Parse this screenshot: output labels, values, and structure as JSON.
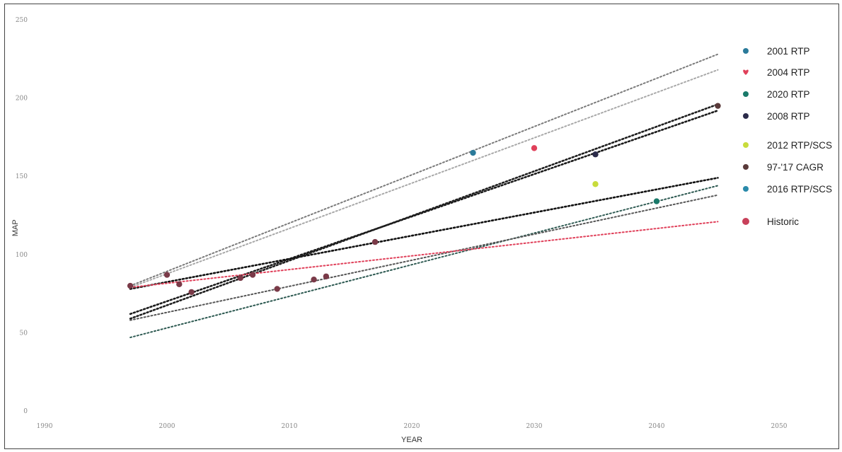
{
  "chart_data": {
    "type": "scatter",
    "xlabel": "YEAR",
    "ylabel": "MAP",
    "xlim": [
      1990,
      2050
    ],
    "ylim": [
      0,
      250
    ],
    "x_ticks": [
      1990,
      2000,
      2010,
      2020,
      2030,
      2040,
      2050
    ],
    "x_tick_labels": [
      "1990",
      "2000",
      "2010",
      "2020",
      "2030",
      "2040",
      "2050"
    ],
    "y_ticks": [
      0,
      50,
      100,
      150,
      200,
      250
    ],
    "y_tick_labels": [
      "0",
      "50",
      "100",
      "150",
      "200",
      "250"
    ],
    "grid": false,
    "legend_position": "right",
    "series": [
      {
        "name": "2001 RTP",
        "color": "#2a7a9a",
        "marker": "circle",
        "points": [
          [
            2025,
            165
          ]
        ],
        "trendline": [
          [
            1997,
            80
          ],
          [
            2045,
            228
          ]
        ]
      },
      {
        "name": "2004 RTP",
        "color": "#e0405a",
        "marker": "heart",
        "points": [
          [
            2030,
            168
          ]
        ],
        "trendline": [
          [
            1997,
            79
          ],
          [
            2045,
            218
          ]
        ]
      },
      {
        "name": "2020 RTP",
        "color": "#1a7a6a",
        "marker": "circle",
        "points": [
          [
            2040,
            134
          ]
        ],
        "trendline": [
          [
            1997,
            47
          ],
          [
            2045,
            144
          ]
        ]
      },
      {
        "name": "2008 RTP",
        "color": "#2b2b4a",
        "marker": "circle",
        "points": [
          [
            2035,
            164
          ]
        ],
        "trendline": [
          [
            1997,
            62
          ],
          [
            2045,
            192
          ]
        ]
      },
      {
        "name": "2012 RTP/SCS",
        "color": "#c8dc3c",
        "marker": "circle",
        "points": [
          [
            2035,
            145
          ]
        ],
        "trendline": [
          [
            1997,
            78
          ],
          [
            2045,
            149
          ]
        ]
      },
      {
        "name": "97-'17 CAGR",
        "color": "#5a3a3a",
        "marker": "circle",
        "points": [
          [
            2045,
            195
          ]
        ],
        "trendline": [
          [
            1997,
            59
          ],
          [
            2045,
            196
          ]
        ]
      },
      {
        "name": "2016 RTP/SCS",
        "color": "#2a8aaa",
        "marker": "circle",
        "points": [],
        "trendline": [
          [
            1997,
            58
          ],
          [
            2045,
            138
          ]
        ]
      },
      {
        "name": "Historic",
        "color": "#c8405a",
        "marker": "circle",
        "points": [
          [
            1997,
            80
          ],
          [
            2000,
            87
          ],
          [
            2001,
            81
          ],
          [
            2002,
            76
          ],
          [
            2006,
            85
          ],
          [
            2007,
            87
          ],
          [
            2009,
            78
          ],
          [
            2012,
            84
          ],
          [
            2013,
            86
          ],
          [
            2017,
            108
          ]
        ],
        "trendline": [
          [
            1997,
            79
          ],
          [
            2045,
            121
          ]
        ]
      }
    ]
  }
}
